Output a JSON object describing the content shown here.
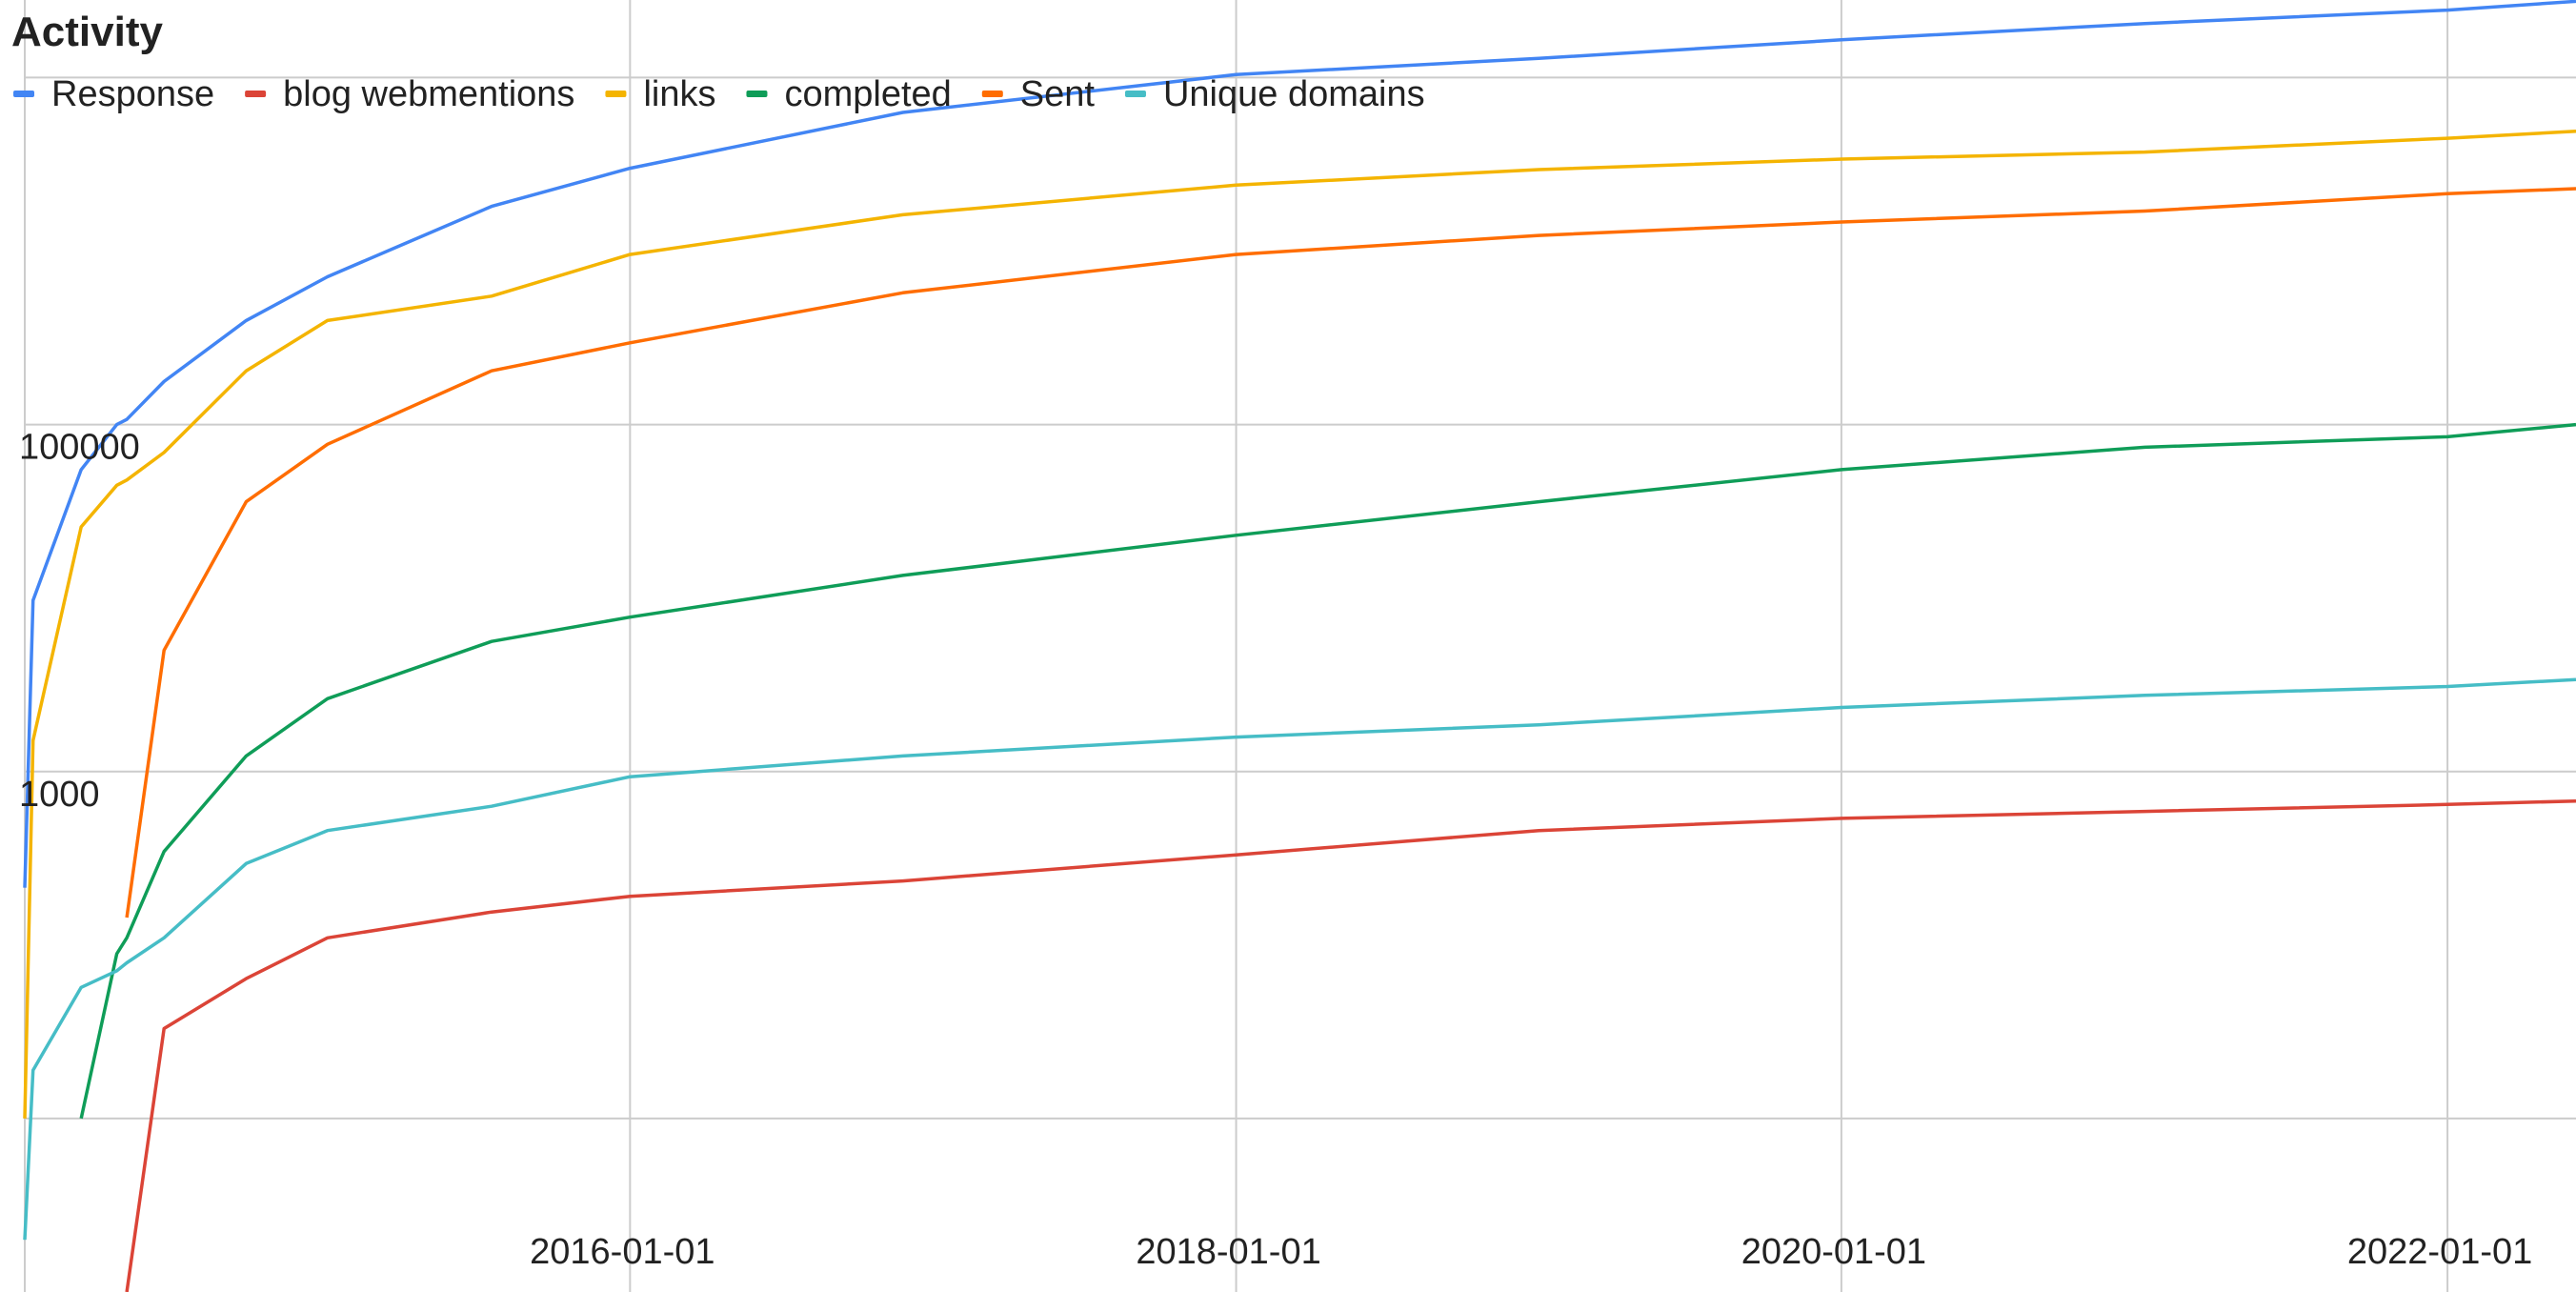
{
  "chart_data": {
    "type": "line",
    "title": "Activity",
    "x": [
      "2014-01-01",
      "2014-01-11",
      "2014-03-10",
      "2014-04-22",
      "2014-05-04",
      "2014-06-18",
      "2014-09-25",
      "2015-01-01",
      "2015-07-18",
      "2016-01-01",
      "2016-11-25",
      "2018-01-01",
      "2019-01-01",
      "2020-01-01",
      "2021-01-01",
      "2022-01-01",
      "2022-06-05"
    ],
    "series": [
      {
        "name": "Response",
        "color": "#4285f4",
        "values": [
          214,
          9700,
          55000,
          100000,
          107000,
          177000,
          398000,
          711000,
          1810000,
          3000000,
          6300000,
          10400000,
          12900000,
          16500000,
          20500000,
          24500000,
          27500000
        ]
      },
      {
        "name": "blog webmentions",
        "color": "#db4437",
        "values": [
          null,
          null,
          null,
          null,
          1,
          33,
          64,
          110,
          155,
          191,
          234,
          331,
          457,
          537,
          589,
          646,
          676
        ]
      },
      {
        "name": "links",
        "color": "#f4b400",
        "values": [
          10,
          1510,
          25700,
          44700,
          47900,
          69000,
          204000,
          398000,
          550000,
          955000,
          1620000,
          2400000,
          2950000,
          3390000,
          3720000,
          4470000,
          4900000
        ]
      },
      {
        "name": "completed",
        "color": "#0f9d58",
        "values": [
          null,
          null,
          10,
          89,
          110,
          346,
          1230,
          2630,
          5620,
          7760,
          13500,
          23000,
          35900,
          55000,
          74000,
          85000,
          100000
        ]
      },
      {
        "name": "Sent",
        "color": "#ff6d01",
        "values": [
          null,
          null,
          null,
          null,
          144,
          5000,
          35900,
          77000,
          204000,
          296000,
          575000,
          955000,
          1230000,
          1470000,
          1700000,
          2140000,
          2290000
        ]
      },
      {
        "name": "Unique domains",
        "color": "#46bdc6",
        "values": [
          2,
          19,
          57,
          71,
          79,
          110,
          295,
          457,
          631,
          933,
          1230,
          1580,
          1860,
          2340,
          2750,
          3090,
          3390
        ]
      }
    ],
    "xlim": [
      "2014-01-01",
      "2022-06-05"
    ],
    "xticks": [
      "2016-01-01",
      "2018-01-01",
      "2020-01-01",
      "2022-01-01"
    ],
    "ylim": [
      1,
      28000000
    ],
    "yticks": [
      1000,
      100000
    ],
    "ygrid": [
      10,
      1000,
      100000,
      10000000
    ],
    "log_y": true,
    "grid": true,
    "legend": "top"
  }
}
